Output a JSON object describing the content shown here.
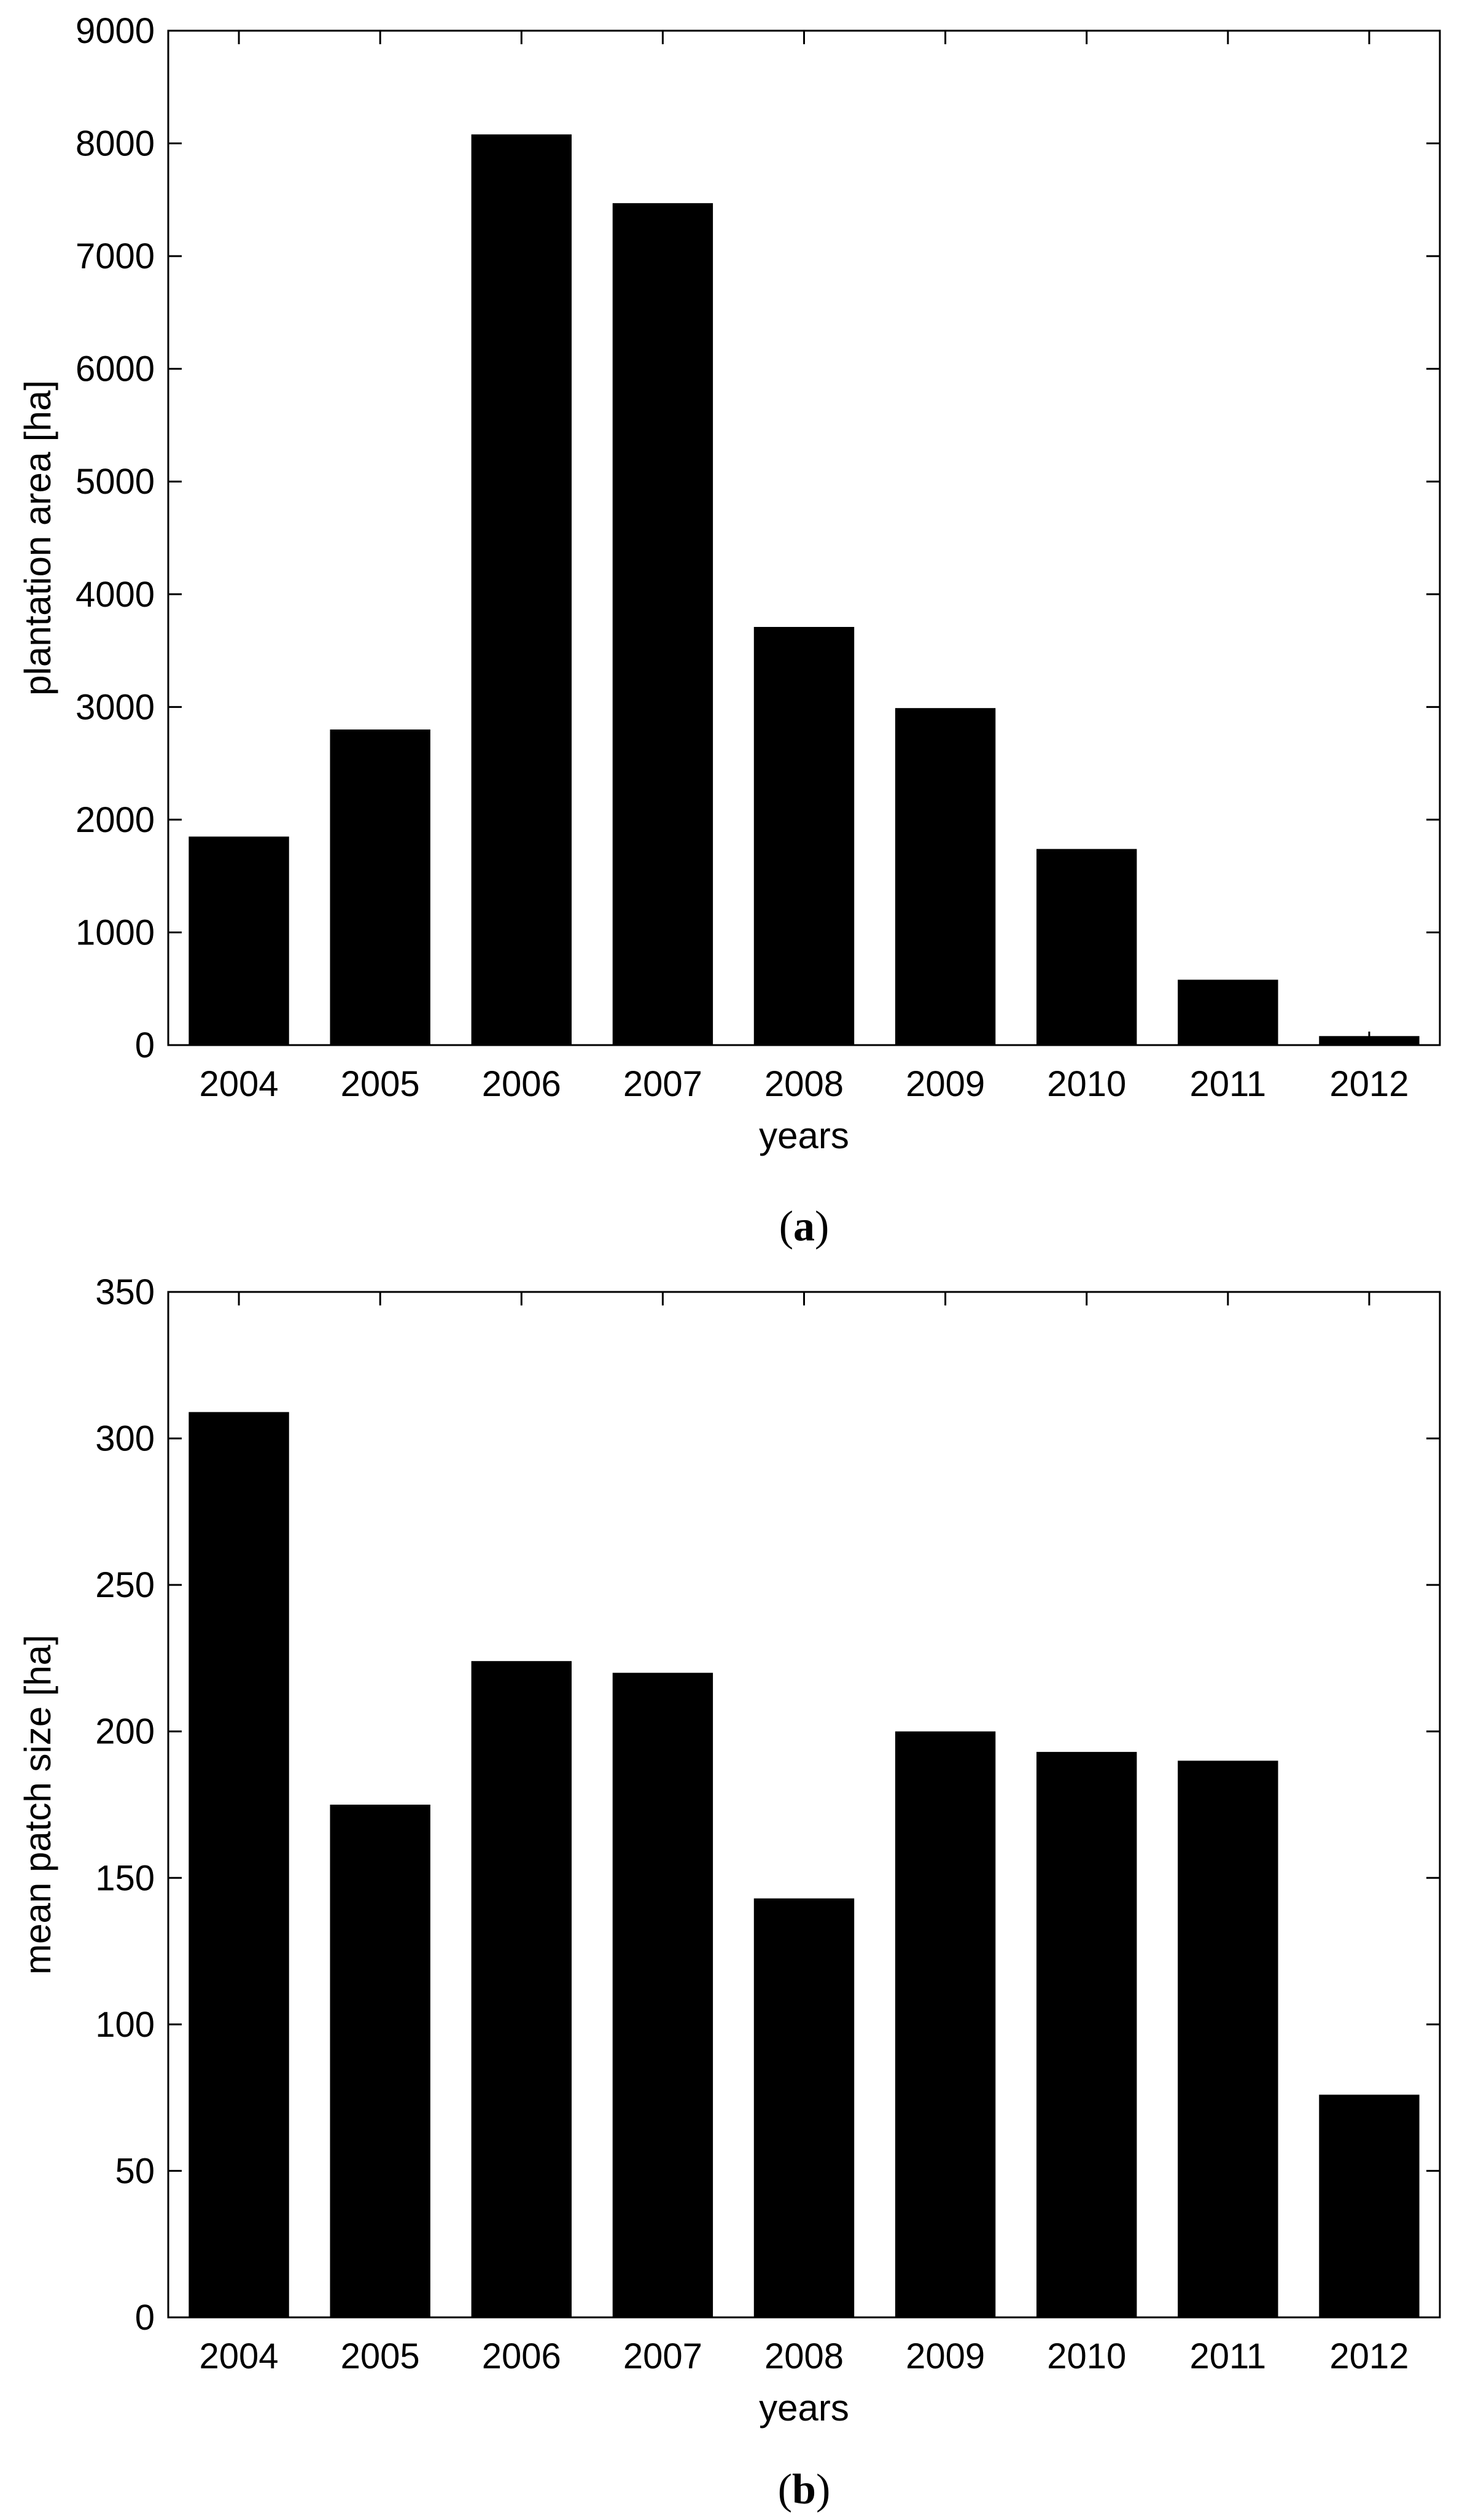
{
  "chart_data": [
    {
      "type": "bar",
      "panel_label": "a",
      "categories": [
        "2004",
        "2005",
        "2006",
        "2007",
        "2008",
        "2009",
        "2010",
        "2011",
        "2012"
      ],
      "values": [
        1850,
        2800,
        8080,
        7470,
        3710,
        2990,
        1740,
        580,
        80
      ],
      "xlabel": "years",
      "ylabel": "plantation area [ha]",
      "ylim": [
        0,
        9000
      ],
      "yticks": [
        0,
        1000,
        2000,
        3000,
        4000,
        5000,
        6000,
        7000,
        8000,
        9000
      ],
      "bar_color": "#000000",
      "grid": false
    },
    {
      "type": "bar",
      "panel_label": "b",
      "categories": [
        "2004",
        "2005",
        "2006",
        "2007",
        "2008",
        "2009",
        "2010",
        "2011",
        "2012"
      ],
      "values": [
        309,
        175,
        224,
        220,
        143,
        200,
        193,
        190,
        76
      ],
      "xlabel": "years",
      "ylabel": "mean patch size [ha]",
      "ylim": [
        0,
        350
      ],
      "yticks": [
        0,
        50,
        100,
        150,
        200,
        250,
        300,
        350
      ],
      "bar_color": "#000000",
      "grid": false
    }
  ]
}
